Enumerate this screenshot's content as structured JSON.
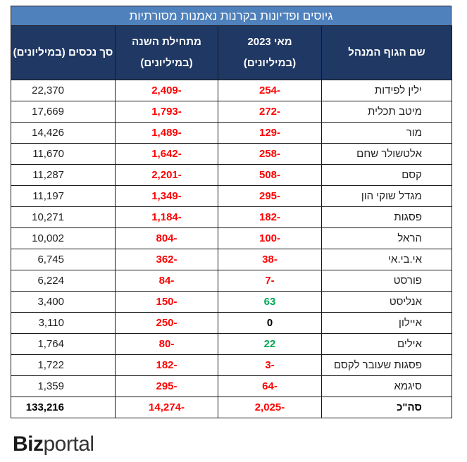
{
  "title": "גיוסים ופדיונות בקרנות נאמנות מסורתיות",
  "headers": {
    "manager": "שם הגוף המנהל",
    "may_line1": "מאי 2023",
    "may_line2": "(במיליונים)",
    "ytd_line1": "מתחילת השנה",
    "ytd_line2": "(במיליונים)",
    "assets": "סך נכסים (במיליונים)"
  },
  "rows": [
    {
      "manager": "ילין לפידות",
      "may": "-254",
      "ytd": "-2,409",
      "assets": "22,370",
      "may_sign": "neg"
    },
    {
      "manager": "מיטב תכלית",
      "may": "-272",
      "ytd": "-1,793",
      "assets": "17,669",
      "may_sign": "neg"
    },
    {
      "manager": "מור",
      "may": "-129",
      "ytd": "-1,489",
      "assets": "14,426",
      "may_sign": "neg"
    },
    {
      "manager": "אלטשולר שחם",
      "may": "-258",
      "ytd": "-1,642",
      "assets": "11,670",
      "may_sign": "neg"
    },
    {
      "manager": "קסם",
      "may": "-508",
      "ytd": "-2,201",
      "assets": "11,287",
      "may_sign": "neg"
    },
    {
      "manager": "מגדל שוקי הון",
      "may": "-295",
      "ytd": "-1,349",
      "assets": "11,197",
      "may_sign": "neg"
    },
    {
      "manager": "פסגות",
      "may": "-182",
      "ytd": "-1,184",
      "assets": "10,271",
      "may_sign": "neg"
    },
    {
      "manager": "הראל",
      "may": "-100",
      "ytd": "-804",
      "assets": "10,002",
      "may_sign": "neg"
    },
    {
      "manager": "אי.בי.אי",
      "may": "-38",
      "ytd": "-362",
      "assets": "6,745",
      "may_sign": "neg"
    },
    {
      "manager": "פורסט",
      "may": "-7",
      "ytd": "-84",
      "assets": "6,224",
      "may_sign": "neg"
    },
    {
      "manager": "אנליסט",
      "may": "63",
      "ytd": "-150",
      "assets": "3,400",
      "may_sign": "pos"
    },
    {
      "manager": "איילון",
      "may": "0",
      "ytd": "-250",
      "assets": "3,110",
      "may_sign": "zero"
    },
    {
      "manager": "אילים",
      "may": "22",
      "ytd": "-80",
      "assets": "1,764",
      "may_sign": "pos"
    },
    {
      "manager": "פסגות שעובר לקסם",
      "may": "-3",
      "ytd": "-182",
      "assets": "1,722",
      "may_sign": "neg"
    },
    {
      "manager": "סיגמא",
      "may": "-64",
      "ytd": "-295",
      "assets": "1,359",
      "may_sign": "neg"
    }
  ],
  "total": {
    "manager": "סה\"כ",
    "may": "-2,025",
    "ytd": "-14,274",
    "assets": "133,216"
  },
  "logo": {
    "bold": "Biz",
    "light": "portal"
  },
  "colors": {
    "title_bg": "#4f81bd",
    "header_bg": "#1f3864",
    "negative": "#ff0000",
    "positive": "#00a651"
  }
}
